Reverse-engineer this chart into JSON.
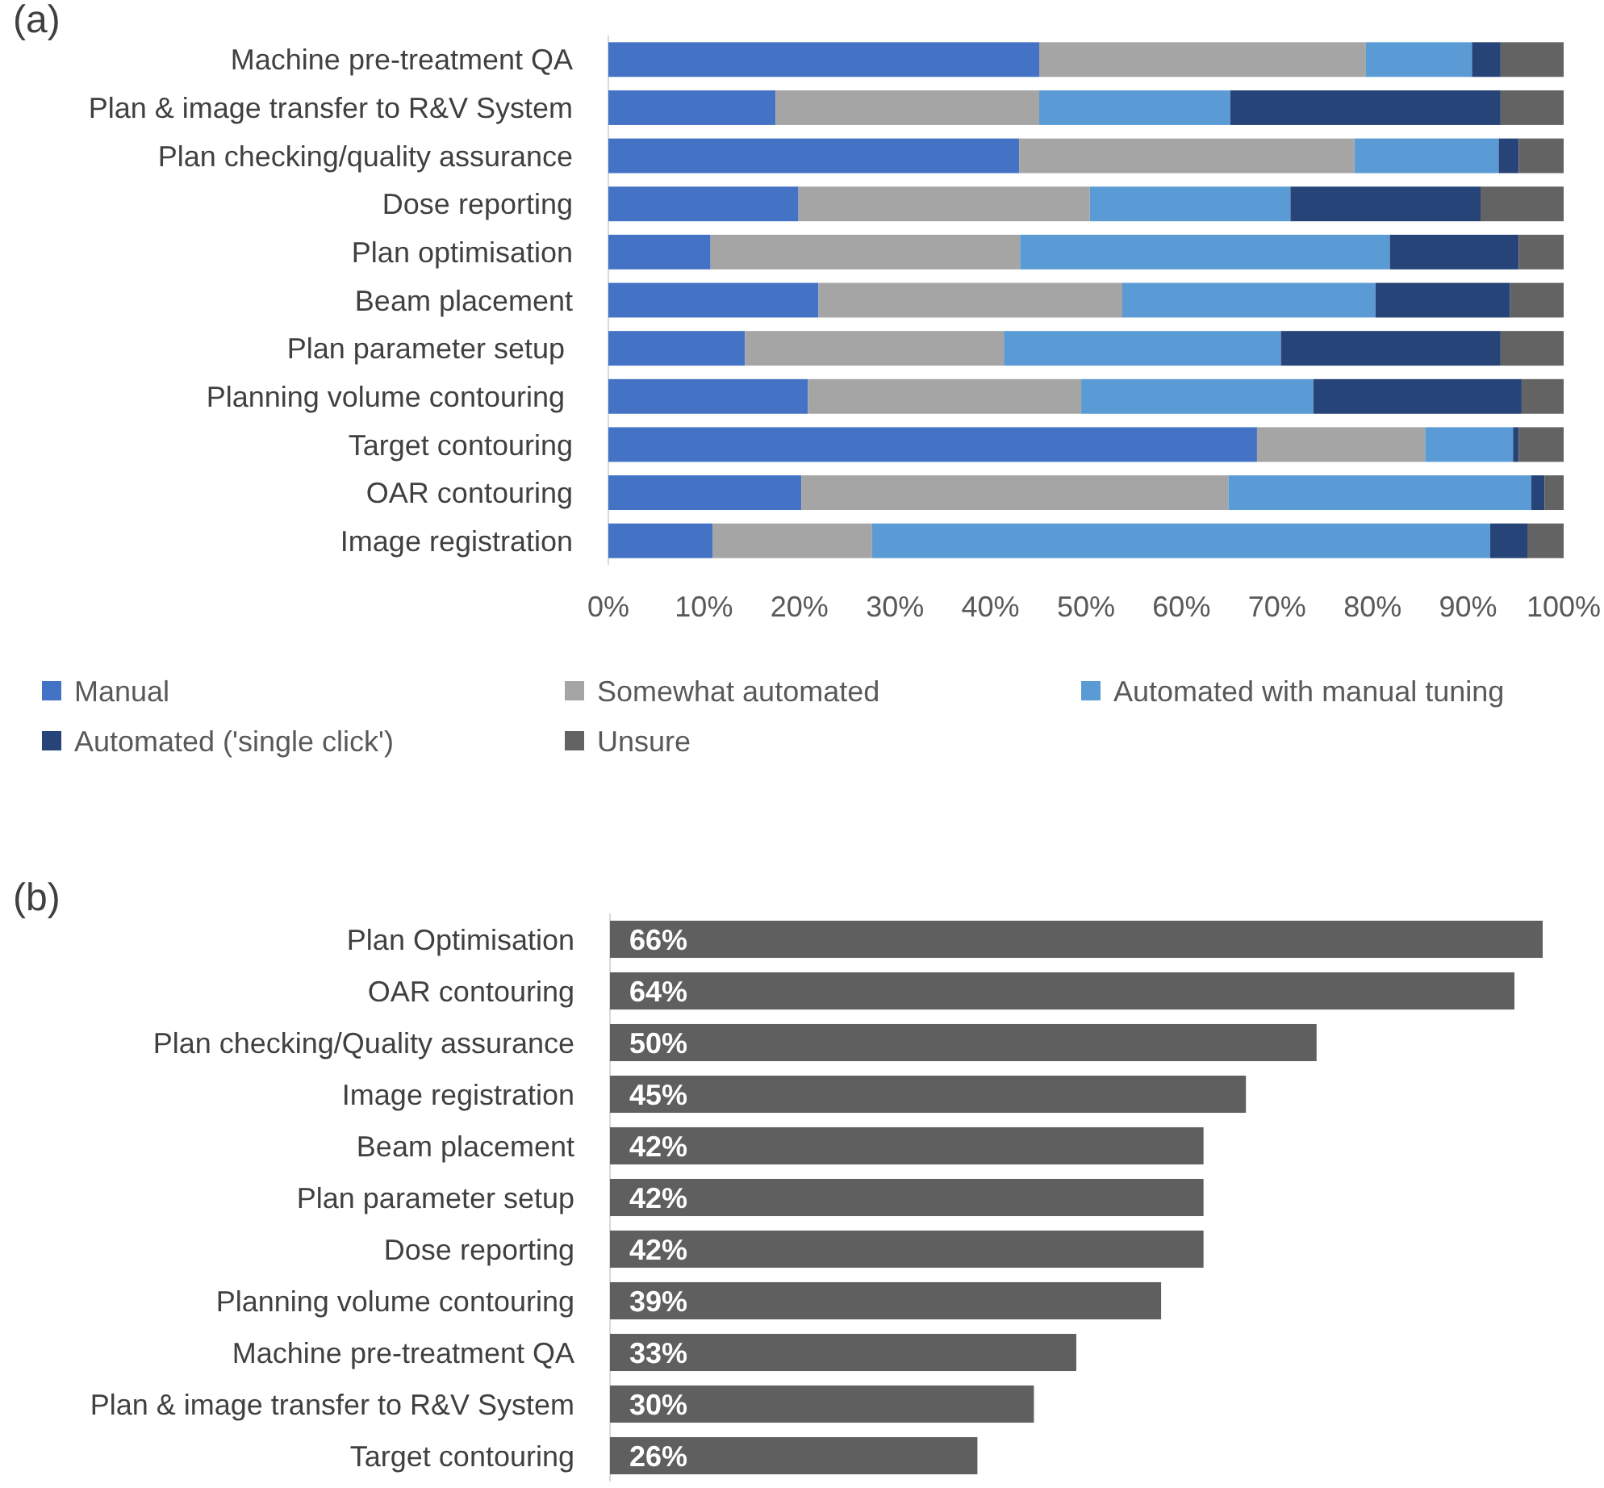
{
  "chart_data": [
    {
      "type": "bar",
      "title": "(a)",
      "orientation": "horizontal",
      "stacked": true,
      "legend": "bottom",
      "categories": [
        "Machine pre-treatment QA",
        "Plan & image transfer to R&V System",
        "Plan checking/quality assurance",
        "Dose reporting",
        "Plan optimisation",
        "Beam placement",
        "Plan parameter setup ",
        "Planning volume contouring ",
        "Target contouring",
        "OAR contouring",
        "Image registration"
      ],
      "series": [
        {
          "name": "Manual",
          "color": "#4472c4",
          "values": [
            45.1,
            17.5,
            43.0,
            19.9,
            10.7,
            22.0,
            14.3,
            20.9,
            67.9,
            20.2,
            10.9
          ]
        },
        {
          "name": "Somewhat automated",
          "color": "#a5a5a5",
          "values": [
            34.2,
            27.6,
            35.1,
            30.5,
            32.4,
            31.8,
            27.1,
            28.6,
            17.6,
            44.7,
            16.7
          ]
        },
        {
          "name": "Automated with manual tuning",
          "color": "#5b9bd5",
          "values": [
            11.1,
            20.0,
            15.1,
            21.0,
            38.7,
            26.5,
            29.0,
            24.3,
            9.2,
            31.7,
            64.7
          ]
        },
        {
          "name": "Automated ('single click')",
          "color": "#264478",
          "values": [
            3.0,
            28.3,
            2.1,
            19.9,
            13.5,
            14.1,
            23.0,
            21.8,
            0.6,
            1.4,
            3.9
          ]
        },
        {
          "name": "Unsure",
          "color": "#636363",
          "values": [
            6.6,
            6.6,
            4.7,
            8.7,
            4.7,
            5.6,
            6.6,
            4.4,
            4.7,
            2.0,
            3.8
          ]
        }
      ],
      "xlim": [
        0,
        100
      ],
      "xticks": [
        {
          "value": 0,
          "label": "0%"
        },
        {
          "value": 10,
          "label": "10%"
        },
        {
          "value": 20,
          "label": "20%"
        },
        {
          "value": 30,
          "label": "30%"
        },
        {
          "value": 40,
          "label": "40%"
        },
        {
          "value": 50,
          "label": "50%"
        },
        {
          "value": 60,
          "label": "60%"
        },
        {
          "value": 70,
          "label": "70%"
        },
        {
          "value": 80,
          "label": "80%"
        },
        {
          "value": 90,
          "label": "90%"
        },
        {
          "value": 100,
          "label": "100%"
        }
      ]
    },
    {
      "type": "bar",
      "title": "(b)",
      "orientation": "horizontal",
      "categories": [
        "Plan Optimisation",
        "OAR contouring",
        "Plan checking/Quality assurance",
        "Image registration",
        "Beam placement",
        "Plan parameter setup",
        "Dose reporting",
        "Planning volume contouring",
        "Machine pre-treatment QA",
        "Plan & image transfer to R&V System",
        "Target contouring"
      ],
      "values": [
        66,
        64,
        50,
        45,
        42,
        42,
        42,
        39,
        33,
        30,
        26
      ],
      "value_labels": [
        "66%",
        "64%",
        "50%",
        "45%",
        "42%",
        "42%",
        "42%",
        "39%",
        "33%",
        "30%",
        "26%"
      ],
      "color": "#5f5f5f"
    }
  ]
}
